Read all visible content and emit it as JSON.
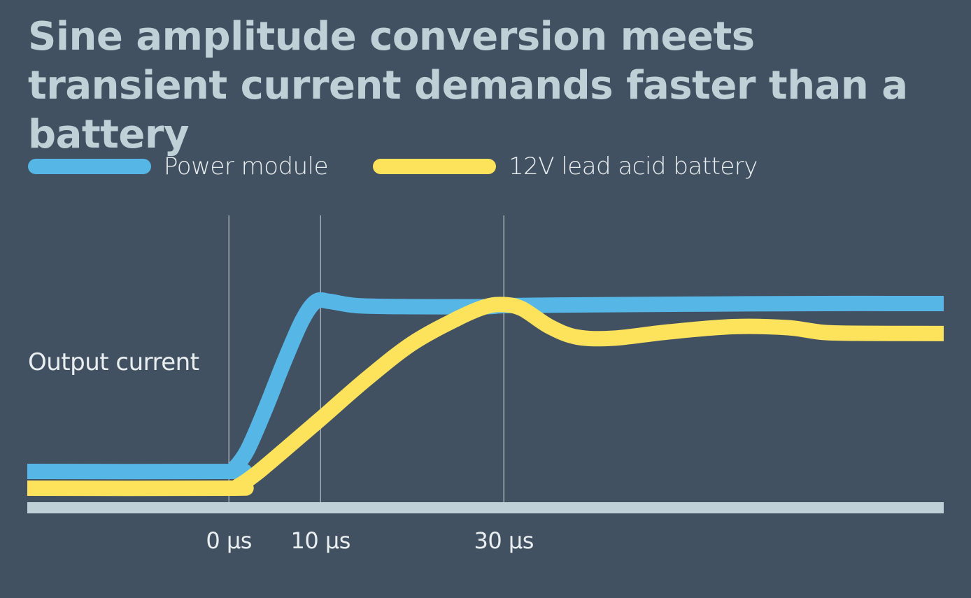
{
  "chart_data": {
    "type": "line",
    "title": "Sine amplitude conversion meets transient current demands faster than a battery",
    "xlabel": "",
    "ylabel": "Output current",
    "x_unit": "µs",
    "xlim": [
      -22,
      78
    ],
    "ylim": [
      0,
      1
    ],
    "x_ticks": [
      {
        "value": 0,
        "label": "0 µs"
      },
      {
        "value": 10,
        "label": "10 µs"
      },
      {
        "value": 30,
        "label": "30 µs"
      }
    ],
    "grid": "vertical lines at tick positions",
    "legend": "top-left",
    "series": [
      {
        "name": "Power module",
        "color": "#56b6e6",
        "points": [
          [
            -22,
            0.12
          ],
          [
            0,
            0.12
          ],
          [
            0.5,
            0.13
          ],
          [
            2,
            0.22
          ],
          [
            4,
            0.42
          ],
          [
            6,
            0.64
          ],
          [
            8,
            0.84
          ],
          [
            9.5,
            0.93
          ],
          [
            11,
            0.93
          ],
          [
            14,
            0.91
          ],
          [
            20,
            0.905
          ],
          [
            28,
            0.905
          ],
          [
            30,
            0.91
          ],
          [
            36,
            0.913
          ],
          [
            50,
            0.917
          ],
          [
            65,
            0.92
          ],
          [
            78,
            0.92
          ]
        ]
      },
      {
        "name": "12V lead acid battery",
        "color": "#fde25c",
        "points": [
          [
            -22,
            0.04
          ],
          [
            0,
            0.04
          ],
          [
            1,
            0.05
          ],
          [
            3,
            0.11
          ],
          [
            6,
            0.22
          ],
          [
            10,
            0.37
          ],
          [
            15,
            0.56
          ],
          [
            20,
            0.73
          ],
          [
            25,
            0.85
          ],
          [
            28,
            0.905
          ],
          [
            30,
            0.915
          ],
          [
            32,
            0.895
          ],
          [
            35,
            0.81
          ],
          [
            38,
            0.76
          ],
          [
            42,
            0.755
          ],
          [
            48,
            0.785
          ],
          [
            55,
            0.81
          ],
          [
            61,
            0.805
          ],
          [
            65,
            0.782
          ],
          [
            70,
            0.778
          ],
          [
            78,
            0.777
          ]
        ]
      }
    ],
    "colors": {
      "background": "#425161",
      "title": "#bfd0d6",
      "baseline": "#bfd0d6",
      "gridline": "#b9c4ca",
      "text": "#e9eef0"
    }
  }
}
